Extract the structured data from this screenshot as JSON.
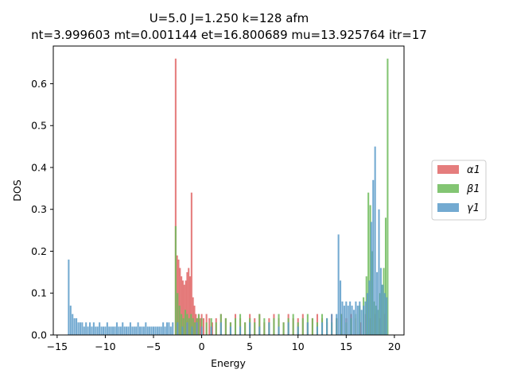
{
  "chart_data": {
    "type": "histogram",
    "title_line1": "U=5.0 J=1.250 k=128 afm",
    "title_line2": "nt=3.999603 mt=0.001144 et=16.800689 mu=13.925764 itr=17",
    "xlabel": "Energy",
    "ylabel": "DOS",
    "xlim": [
      -15.4,
      21.0
    ],
    "ylim": [
      0.0,
      0.69
    ],
    "xticks": [
      -15,
      -10,
      -5,
      0,
      5,
      10,
      15,
      20
    ],
    "xtick_labels": [
      "−15",
      "−10",
      "−5",
      "0",
      "5",
      "10",
      "15",
      "20"
    ],
    "yticks": [
      0.0,
      0.1,
      0.2,
      0.3,
      0.4,
      0.5,
      0.6
    ],
    "ytick_labels": [
      "0.0",
      "0.1",
      "0.2",
      "0.3",
      "0.4",
      "0.5",
      "0.6"
    ],
    "legend_position": "right",
    "bin_width": 0.17,
    "series": [
      {
        "name": "α1",
        "color": "#e06666",
        "x": [
          -2.7,
          -2.55,
          -2.4,
          -2.25,
          -2.1,
          -1.95,
          -1.8,
          -1.65,
          -1.5,
          -1.35,
          -1.2,
          -1.05,
          -0.9,
          -0.75,
          -0.6,
          -0.45,
          -0.3,
          -0.15,
          0.0,
          0.2,
          0.5,
          0.8,
          1.1,
          1.5,
          2.0,
          2.5,
          3.0,
          3.5,
          4.0,
          4.5,
          5.0,
          5.5,
          6.0,
          6.5,
          7.0,
          7.5,
          8.0,
          8.5,
          9.0,
          9.5,
          10.0,
          10.5,
          11.0,
          11.5,
          12.0,
          12.5,
          13.0,
          13.5,
          14.0,
          14.5,
          15.0,
          15.5,
          16.0,
          16.5,
          17.0,
          17.5,
          18.0,
          18.5,
          19.0
        ],
        "values": [
          0.66,
          0.19,
          0.18,
          0.16,
          0.14,
          0.13,
          0.12,
          0.13,
          0.15,
          0.16,
          0.14,
          0.34,
          0.09,
          0.07,
          0.05,
          0.04,
          0.05,
          0.04,
          0.05,
          0.04,
          0.05,
          0.04,
          0.03,
          0.04,
          0.05,
          0.04,
          0.03,
          0.05,
          0.04,
          0.03,
          0.05,
          0.04,
          0.05,
          0.03,
          0.04,
          0.05,
          0.04,
          0.03,
          0.05,
          0.04,
          0.04,
          0.05,
          0.03,
          0.04,
          0.05,
          0.04,
          0.03,
          0.05,
          0.04,
          0.05,
          0.04,
          0.05,
          0.04,
          0.03,
          0.05,
          0.04,
          0.05,
          0.04,
          0.05
        ]
      },
      {
        "name": "β1",
        "color": "#6dbb5a",
        "x": [
          -2.7,
          -2.5,
          -2.3,
          -2.1,
          -1.9,
          -1.7,
          -1.5,
          -1.3,
          -1.1,
          -0.9,
          -0.7,
          -0.5,
          -0.3,
          0.0,
          0.5,
          1.0,
          1.5,
          2.0,
          2.5,
          3.0,
          3.5,
          4.0,
          4.5,
          5.0,
          5.5,
          6.0,
          6.5,
          7.0,
          7.5,
          8.0,
          8.5,
          9.0,
          9.5,
          10.0,
          10.5,
          11.0,
          11.5,
          12.0,
          12.5,
          13.0,
          13.5,
          14.0,
          14.5,
          15.0,
          15.5,
          16.0,
          16.4,
          16.8,
          17.1,
          17.3,
          17.5,
          17.7,
          17.9,
          18.1,
          18.3,
          18.5,
          18.7,
          18.9,
          19.1,
          19.3
        ],
        "values": [
          0.26,
          0.1,
          0.07,
          0.05,
          0.04,
          0.06,
          0.05,
          0.04,
          0.05,
          0.04,
          0.03,
          0.04,
          0.05,
          0.04,
          0.03,
          0.04,
          0.03,
          0.05,
          0.04,
          0.03,
          0.04,
          0.05,
          0.03,
          0.04,
          0.03,
          0.05,
          0.04,
          0.03,
          0.04,
          0.05,
          0.03,
          0.04,
          0.05,
          0.03,
          0.04,
          0.05,
          0.04,
          0.03,
          0.05,
          0.04,
          0.03,
          0.04,
          0.05,
          0.03,
          0.04,
          0.05,
          0.07,
          0.09,
          0.14,
          0.34,
          0.31,
          0.2,
          0.08,
          0.07,
          0.06,
          0.1,
          0.12,
          0.16,
          0.28,
          0.66
        ]
      },
      {
        "name": "γ1",
        "color": "#5a9bc9",
        "x": [
          -13.8,
          -13.6,
          -13.4,
          -13.2,
          -13.0,
          -12.8,
          -12.6,
          -12.4,
          -12.2,
          -12.0,
          -11.8,
          -11.6,
          -11.4,
          -11.2,
          -11.0,
          -10.8,
          -10.6,
          -10.4,
          -10.2,
          -10.0,
          -9.8,
          -9.6,
          -9.4,
          -9.2,
          -9.0,
          -8.8,
          -8.6,
          -8.4,
          -8.2,
          -8.0,
          -7.8,
          -7.6,
          -7.4,
          -7.2,
          -7.0,
          -6.8,
          -6.6,
          -6.4,
          -6.2,
          -6.0,
          -5.8,
          -5.6,
          -5.4,
          -5.2,
          -5.0,
          -4.8,
          -4.6,
          -4.4,
          -4.2,
          -4.0,
          -3.8,
          -3.6,
          -3.4,
          -3.2,
          -3.0,
          -2.5,
          -2.0,
          -1.5,
          -1.0,
          -0.5,
          0.0,
          1.0,
          2.0,
          3.0,
          4.0,
          5.0,
          6.0,
          7.0,
          8.0,
          9.0,
          10.0,
          11.0,
          12.0,
          12.5,
          13.0,
          13.5,
          14.0,
          14.2,
          14.4,
          14.6,
          14.8,
          15.0,
          15.2,
          15.4,
          15.6,
          15.8,
          16.0,
          16.2,
          16.4,
          16.6,
          16.8,
          17.0,
          17.2,
          17.4,
          17.6,
          17.8,
          18.0,
          18.2,
          18.4,
          18.6,
          18.8,
          19.0,
          19.2
        ],
        "values": [
          0.18,
          0.07,
          0.05,
          0.04,
          0.04,
          0.03,
          0.03,
          0.03,
          0.02,
          0.03,
          0.02,
          0.03,
          0.02,
          0.03,
          0.02,
          0.02,
          0.03,
          0.02,
          0.02,
          0.02,
          0.03,
          0.02,
          0.02,
          0.02,
          0.02,
          0.03,
          0.02,
          0.02,
          0.03,
          0.02,
          0.02,
          0.02,
          0.03,
          0.02,
          0.02,
          0.02,
          0.03,
          0.02,
          0.02,
          0.02,
          0.03,
          0.02,
          0.02,
          0.02,
          0.02,
          0.02,
          0.02,
          0.02,
          0.02,
          0.03,
          0.02,
          0.03,
          0.03,
          0.02,
          0.03,
          0.03,
          0.02,
          0.03,
          0.02,
          0.03,
          0.02,
          0.02,
          0.03,
          0.02,
          0.02,
          0.03,
          0.02,
          0.03,
          0.02,
          0.03,
          0.02,
          0.03,
          0.02,
          0.03,
          0.04,
          0.05,
          0.05,
          0.24,
          0.13,
          0.08,
          0.07,
          0.08,
          0.07,
          0.08,
          0.07,
          0.06,
          0.08,
          0.07,
          0.08,
          0.06,
          0.07,
          0.08,
          0.1,
          0.13,
          0.27,
          0.37,
          0.45,
          0.15,
          0.3,
          0.16,
          0.12,
          0.1,
          0.09
        ]
      }
    ]
  }
}
